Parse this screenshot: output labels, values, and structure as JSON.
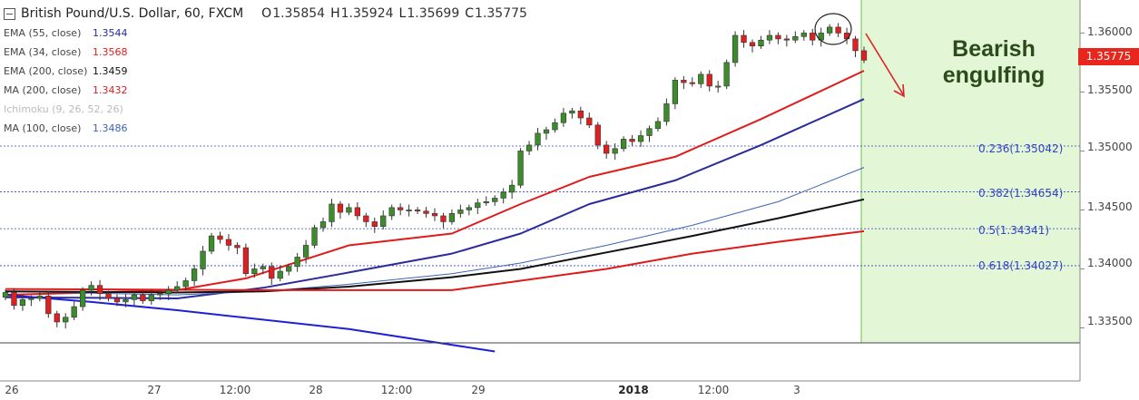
{
  "header": {
    "symbol": "British Pound/U.S. Dollar, 60, FXCM",
    "open_label": "O",
    "open": "1.35854",
    "high_label": "H",
    "high": "1.35924",
    "low_label": "L",
    "low": "1.35699",
    "close_label": "C",
    "close": "1.35775"
  },
  "indicators": [
    {
      "name": "EMA (55, close)",
      "value": "1.3544",
      "color": "#2b2b9c"
    },
    {
      "name": "EMA (34, close)",
      "value": "1.3568",
      "color": "#e01b1b"
    },
    {
      "name": "EMA (200, close)",
      "value": "1.3459",
      "color": "#111111"
    },
    {
      "name": "MA (200, close)",
      "value": "1.3432",
      "color": "#e01b1b"
    },
    {
      "name": "Ichimoku (9, 26, 52, 26)",
      "value": "",
      "color": "#bbbbbb"
    },
    {
      "name": "MA (100, close)",
      "value": "1.3486",
      "color": "#3c64b4"
    }
  ],
  "annotation": {
    "line1": "Bearish",
    "line2": "engulfing"
  },
  "last_price": "1.35775",
  "colors": {
    "up": "#3c8c2c",
    "down": "#e02020",
    "highlight": "#e3f6d6",
    "fib": "#3343c8"
  },
  "chart_data": {
    "type": "candlestick",
    "y_axis": {
      "ticks": [
        "1.33500",
        "1.34000",
        "1.34500",
        "1.35000",
        "1.35500",
        "1.36000"
      ],
      "range": [
        1.3305,
        1.3628
      ]
    },
    "x_axis": {
      "ticks": [
        "26",
        "27",
        "12:00",
        "28",
        "12:00",
        "29",
        "2018",
        "12:00",
        "3"
      ]
    },
    "fibonacci": [
      {
        "label": "0.236(1.35042)",
        "level": 1.35042
      },
      {
        "label": "0.382(1.34654)",
        "level": 1.34654
      },
      {
        "label": "0.5(1.34341)",
        "level": 1.34341
      },
      {
        "label": "0.618(1.34027)",
        "level": 1.34027
      }
    ],
    "closes": [
      1.338,
      1.3369,
      1.3374,
      1.3375,
      1.3377,
      1.3362,
      1.3355,
      1.3359,
      1.3368,
      1.3382,
      1.3386,
      1.3379,
      1.3375,
      1.3372,
      1.3374,
      1.3378,
      1.3373,
      1.3378,
      1.3379,
      1.3382,
      1.3385,
      1.339,
      1.34,
      1.3415,
      1.3428,
      1.3425,
      1.342,
      1.3418,
      1.3396,
      1.34,
      1.3402,
      1.3392,
      1.3398,
      1.3402,
      1.341,
      1.342,
      1.3435,
      1.344,
      1.3455,
      1.3448,
      1.3452,
      1.3445,
      1.344,
      1.3436,
      1.3445,
      1.3452,
      1.345,
      1.345,
      1.3449,
      1.3447,
      1.3445,
      1.344,
      1.3447,
      1.345,
      1.3452,
      1.3456,
      1.3457,
      1.346,
      1.3465,
      1.3471,
      1.35,
      1.3505,
      1.3515,
      1.3518,
      1.3524,
      1.3532,
      1.3534,
      1.3528,
      1.3522,
      1.3505,
      1.3498,
      1.3502,
      1.351,
      1.3508,
      1.3513,
      1.3519,
      1.3525,
      1.354,
      1.356,
      1.3558,
      1.3557,
      1.3565,
      1.3555,
      1.3555,
      1.3575,
      1.3598,
      1.3592,
      1.3589,
      1.3594,
      1.3598,
      1.3595,
      1.3594,
      1.3597,
      1.36,
      1.3594,
      1.36,
      1.3605,
      1.36,
      1.3595,
      1.3585,
      1.3577
    ],
    "indicator_lines": [
      {
        "name": "EMA (34, close)",
        "color": "#e01b1b",
        "points": [
          [
            0,
            1.3378
          ],
          [
            20,
            1.3382
          ],
          [
            28,
            1.3392
          ],
          [
            40,
            1.342
          ],
          [
            52,
            1.343
          ],
          [
            60,
            1.3455
          ],
          [
            68,
            1.3478
          ],
          [
            78,
            1.3495
          ],
          [
            88,
            1.3527
          ],
          [
            100,
            1.3568
          ]
        ]
      },
      {
        "name": "EMA (55, close)",
        "color": "#2b2b9c",
        "points": [
          [
            0,
            1.3376
          ],
          [
            20,
            1.3375
          ],
          [
            30,
            1.3384
          ],
          [
            40,
            1.3397
          ],
          [
            52,
            1.3413
          ],
          [
            60,
            1.343
          ],
          [
            68,
            1.3455
          ],
          [
            78,
            1.3475
          ],
          [
            88,
            1.3505
          ],
          [
            100,
            1.3544
          ]
        ]
      },
      {
        "name": "MA (100, close)",
        "color": "#3c64b4",
        "points": [
          [
            0,
            1.3381
          ],
          [
            20,
            1.3378
          ],
          [
            30,
            1.3381
          ],
          [
            40,
            1.3387
          ],
          [
            52,
            1.3396
          ],
          [
            60,
            1.3405
          ],
          [
            70,
            1.342
          ],
          [
            80,
            1.3437
          ],
          [
            90,
            1.3457
          ],
          [
            100,
            1.3486
          ]
        ]
      },
      {
        "name": "EMA (200, close)",
        "color": "#111111",
        "points": [
          [
            0,
            1.3381
          ],
          [
            20,
            1.338
          ],
          [
            30,
            1.3381
          ],
          [
            40,
            1.3385
          ],
          [
            52,
            1.3393
          ],
          [
            60,
            1.34
          ],
          [
            70,
            1.3414
          ],
          [
            80,
            1.3428
          ],
          [
            90,
            1.3443
          ],
          [
            100,
            1.3459
          ]
        ]
      },
      {
        "name": "MA (200, close)",
        "color": "#e01b1b",
        "points": [
          [
            0,
            1.3383
          ],
          [
            30,
            1.3382
          ],
          [
            40,
            1.3382
          ],
          [
            52,
            1.3382
          ],
          [
            60,
            1.339
          ],
          [
            70,
            1.34
          ],
          [
            80,
            1.3413
          ],
          [
            90,
            1.3423
          ],
          [
            100,
            1.3432
          ]
        ]
      },
      {
        "name": "Ichimoku (9, 26, 52, 26)",
        "color": "#1f1fd6",
        "points": [
          [
            0,
            1.3378
          ],
          [
            10,
            1.3372
          ],
          [
            20,
            1.3365
          ],
          [
            40,
            1.3349
          ],
          [
            57,
            1.333
          ]
        ]
      }
    ]
  }
}
